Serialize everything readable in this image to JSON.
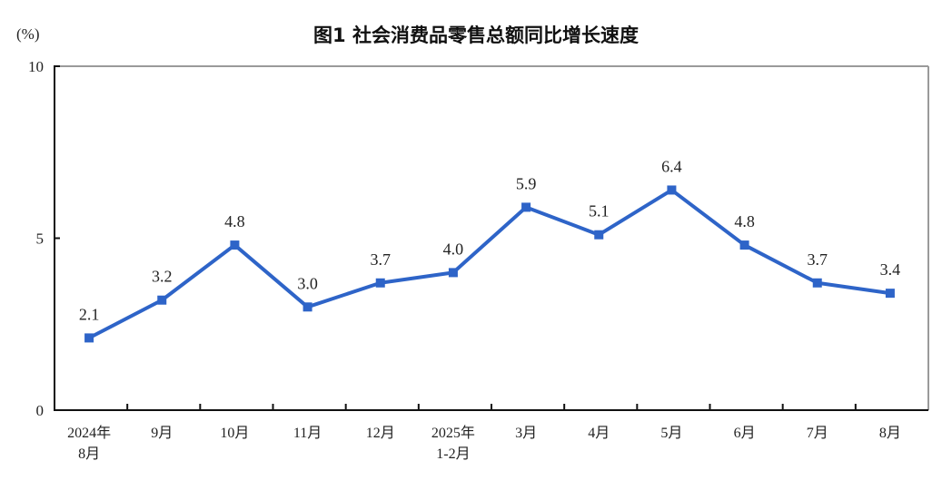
{
  "chart_data": {
    "type": "line",
    "title": "图1  社会消费品零售总额同比增长速度",
    "ylabel": "(%)",
    "ylim": [
      0,
      10
    ],
    "yticks": [
      "0",
      "5",
      "10"
    ],
    "categories": [
      [
        "2024年",
        "8月"
      ],
      [
        "9月"
      ],
      [
        "10月"
      ],
      [
        "11月"
      ],
      [
        "12月"
      ],
      [
        "2025年",
        "1-2月"
      ],
      [
        "3月"
      ],
      [
        "4月"
      ],
      [
        "5月"
      ],
      [
        "6月"
      ],
      [
        "7月"
      ],
      [
        "8月"
      ]
    ],
    "values": [
      2.1,
      3.2,
      4.8,
      3.0,
      3.7,
      4.0,
      5.9,
      5.1,
      6.4,
      4.8,
      3.7,
      3.4
    ],
    "data_labels": [
      "2.1",
      "3.2",
      "4.8",
      "3.0",
      "3.7",
      "4.0",
      "5.9",
      "5.1",
      "6.4",
      "4.8",
      "3.7",
      "3.4"
    ],
    "grid": false,
    "line_color": "#2e64c8",
    "marker": "square"
  }
}
